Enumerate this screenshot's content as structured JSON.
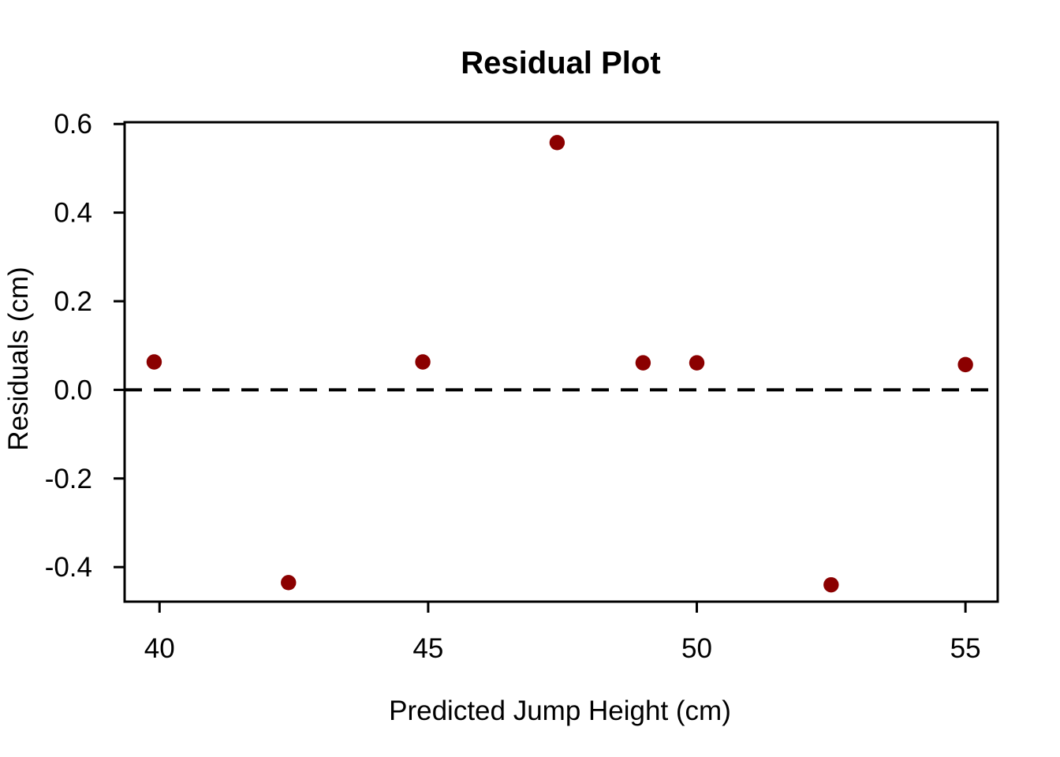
{
  "chart_data": {
    "type": "scatter",
    "title": "Residual Plot",
    "xlabel": "Predicted Jump Height (cm)",
    "ylabel": "Residuals (cm)",
    "x_ticks": [
      40,
      45,
      50,
      55
    ],
    "x_tick_labels": [
      "40",
      "45",
      "50",
      "55"
    ],
    "y_ticks": [
      -0.4,
      -0.2,
      0.0,
      0.2,
      0.4,
      0.6
    ],
    "y_tick_labels": [
      "-0.4",
      "-0.2",
      "0.0",
      "0.2",
      "0.4",
      "0.6"
    ],
    "xlim": [
      39.35,
      55.6
    ],
    "ylim": [
      -0.478,
      0.604
    ],
    "points": [
      {
        "x": 39.9,
        "y": 0.063
      },
      {
        "x": 42.4,
        "y": -0.435
      },
      {
        "x": 44.9,
        "y": 0.063
      },
      {
        "x": 47.4,
        "y": 0.558
      },
      {
        "x": 49.0,
        "y": 0.061
      },
      {
        "x": 50.0,
        "y": 0.061
      },
      {
        "x": 52.5,
        "y": -0.44
      },
      {
        "x": 55.0,
        "y": 0.057
      }
    ],
    "reference_line": {
      "y": 0.0,
      "style": "dashed",
      "color": "#000000"
    },
    "point_color": "#8B0000",
    "axis_color": "#000000",
    "background_color": "#FFFFFF",
    "grid": false,
    "legend": null
  }
}
